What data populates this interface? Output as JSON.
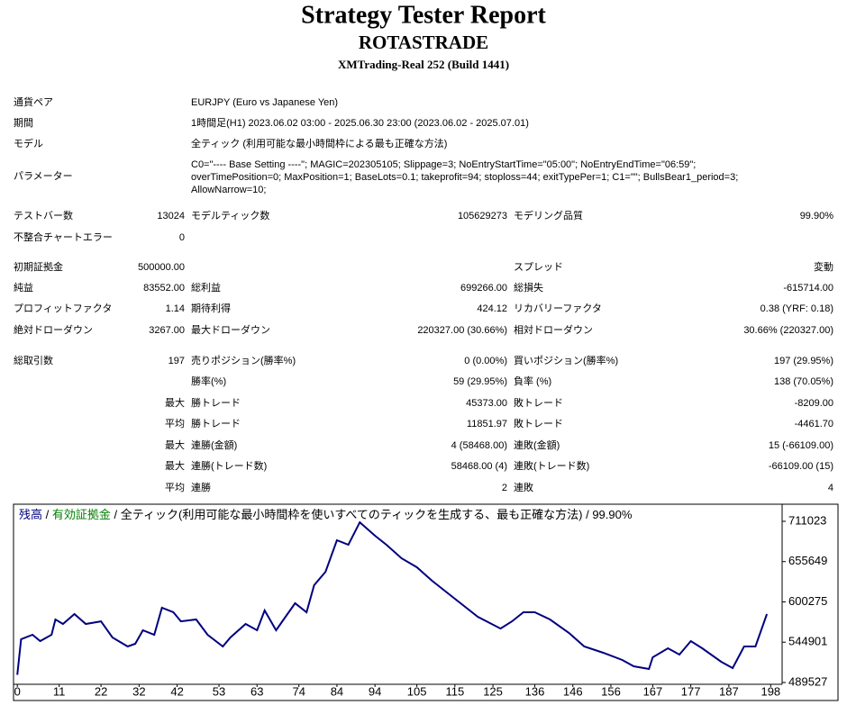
{
  "header": {
    "title": "Strategy Tester Report",
    "subtitle": "ROTASTRADE",
    "server": "XMTrading-Real 252 (Build 1441)"
  },
  "info": [
    {
      "label": "通貨ペア",
      "value": "EURJPY (Euro vs Japanese Yen)"
    },
    {
      "label": "期間",
      "value": "1時間足(H1) 2023.06.02 03:00 - 2025.06.30 23:00 (2023.06.02 - 2025.07.01)"
    },
    {
      "label": "モデル",
      "value": "全ティック (利用可能な最小時間枠による最も正確な方法)"
    }
  ],
  "parameters": {
    "label": "パラメーター",
    "lines": [
      "C0=\"---- Base Setting ----\"; MAGIC=202305105; Slippage=3; NoEntryStartTime=\"05:00\"; NoEntryEndTime=\"06:59\";",
      "overTimePosition=0; MaxPosition=1; BaseLots=0.1; takeprofit=94; stoploss=44; exitTypePer=1; C1=\"\"; BullsBear1_period=3;",
      "AllowNarrow=10;"
    ]
  },
  "stats": [
    [
      "テストバー数",
      "13024",
      "モデルティック数",
      "105629273",
      "モデリング品質",
      "99.90%"
    ],
    [
      "不整合チャートエラー",
      "0",
      null,
      null,
      null,
      null
    ],
    [
      "初期証拠金",
      "500000.00",
      null,
      null,
      "スプレッド",
      "変動"
    ],
    [
      "純益",
      "83552.00",
      "総利益",
      "699266.00",
      "総損失",
      "-615714.00"
    ],
    [
      "プロフィットファクタ",
      "1.14",
      "期待利得",
      "424.12",
      "リカバリーファクタ",
      "0.38 (YRF: 0.18)"
    ],
    [
      "絶対ドローダウン",
      "3267.00",
      "最大ドローダウン",
      "220327.00 (30.66%)",
      "相対ドローダウン",
      "30.66% (220327.00)"
    ],
    [
      "総取引数",
      "197",
      "売りポジション(勝率%)",
      "0 (0.00%)",
      "買いポジション(勝率%)",
      "197 (29.95%)"
    ],
    [
      null,
      null,
      "勝率(%)",
      "59 (29.95%)",
      "負率 (%)",
      "138 (70.05%)"
    ],
    [
      null,
      "最大",
      "勝トレード",
      "45373.00",
      "敗トレード",
      "-8209.00"
    ],
    [
      null,
      "平均",
      "勝トレード",
      "11851.97",
      "敗トレード",
      "-4461.70"
    ],
    [
      null,
      "最大",
      "連勝(金額)",
      "4 (58468.00)",
      "連敗(金額)",
      "15 (-66109.00)"
    ],
    [
      null,
      "最大",
      "連勝(トレード数)",
      "58468.00 (4)",
      "連敗(トレード数)",
      "-66109.00 (15)"
    ],
    [
      null,
      "平均",
      "連勝",
      "2",
      "連敗",
      "4"
    ]
  ],
  "chart_data": {
    "type": "line",
    "legend": {
      "separator": "/",
      "equity": "有効証拠金",
      "equity_color": "#008000",
      "model": "全ティック(利用可能な最小時間枠を使いすべてのティックを生成する、最も正確な方法)",
      "quality": "99.90%"
    },
    "x": [
      0,
      1,
      4,
      6,
      9,
      10,
      12,
      15,
      18,
      22,
      25,
      29,
      31,
      33,
      36,
      38,
      41,
      43,
      47,
      50,
      54,
      56,
      60,
      63,
      65,
      68,
      70,
      73,
      76,
      78,
      81,
      84,
      87,
      90,
      94,
      97,
      101,
      105,
      109,
      115,
      121,
      127,
      130,
      133,
      136,
      140,
      145,
      149,
      154,
      159,
      162,
      166,
      167,
      171,
      174,
      177,
      180,
      185,
      188,
      191,
      194,
      197
    ],
    "series": [
      {
        "name": "残高",
        "color": "#00007f",
        "values": [
          500000,
          548900,
          555100,
          546400,
          555100,
          576100,
          569900,
          583500,
          569900,
          573600,
          551400,
          539000,
          542700,
          561300,
          555100,
          592200,
          586000,
          573600,
          576100,
          555100,
          539000,
          551400,
          569900,
          561300,
          588500,
          561300,
          576100,
          598400,
          586000,
          623100,
          641700,
          685000,
          678800,
          709700,
          691200,
          678800,
          660200,
          647900,
          629300,
          604600,
          579800,
          563700,
          573600,
          586000,
          586000,
          576100,
          557600,
          539000,
          530300,
          520500,
          511800,
          508100,
          524200,
          536500,
          527900,
          546400,
          536500,
          518000,
          509300,
          539000,
          539000,
          583552
        ]
      }
    ],
    "xlim": [
      -1,
      201
    ],
    "xticks": [
      0,
      11,
      22,
      32,
      42,
      53,
      63,
      74,
      84,
      94,
      105,
      115,
      125,
      136,
      146,
      156,
      167,
      177,
      187,
      198
    ],
    "ylim": [
      489527,
      730800
    ],
    "yticks": [
      489527,
      544901,
      600275,
      655649,
      711023
    ]
  }
}
